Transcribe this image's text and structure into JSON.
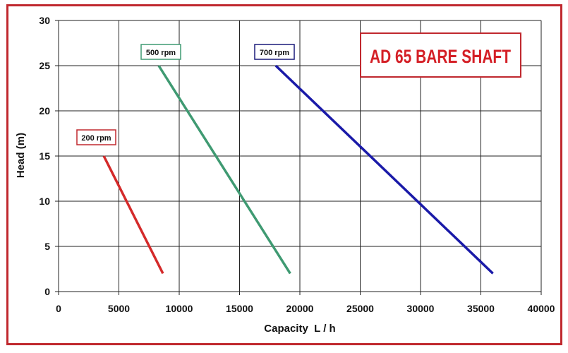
{
  "chart_data": {
    "type": "line",
    "title": "AD 65 BARE SHAFT",
    "xlabel": "Capacity  L / h",
    "ylabel": "Head (m)",
    "xlim": [
      0,
      40000
    ],
    "ylim": [
      0,
      30
    ],
    "x_ticks": [
      0,
      5000,
      10000,
      15000,
      20000,
      25000,
      30000,
      35000,
      40000
    ],
    "y_ticks": [
      0,
      5,
      10,
      15,
      20,
      25,
      30
    ],
    "grid": true,
    "legend": "inline labels near line starts",
    "series": [
      {
        "name": "200 rpm",
        "color": "#d42a2a",
        "x": [
          3750,
          8650
        ],
        "y": [
          15,
          2
        ]
      },
      {
        "name": "500 rpm",
        "color": "#3f9a72",
        "x": [
          8300,
          19200
        ],
        "y": [
          25,
          2
        ]
      },
      {
        "name": "700 rpm",
        "color": "#1a1aa8",
        "x": [
          18000,
          36000
        ],
        "y": [
          25,
          2
        ]
      }
    ]
  },
  "title_box": {
    "text": "AD 65 BARE SHAFT",
    "border_color": "#c0282e",
    "text_color": "#d41f26"
  },
  "labels": {
    "rpm200": "200 rpm",
    "rpm500": "500 rpm",
    "rpm700": "700 rpm"
  },
  "colors": {
    "frame": "#c0282e",
    "rpm200": "#d42a2a",
    "rpm500": "#3f9a72",
    "rpm700": "#1a1aa8"
  }
}
